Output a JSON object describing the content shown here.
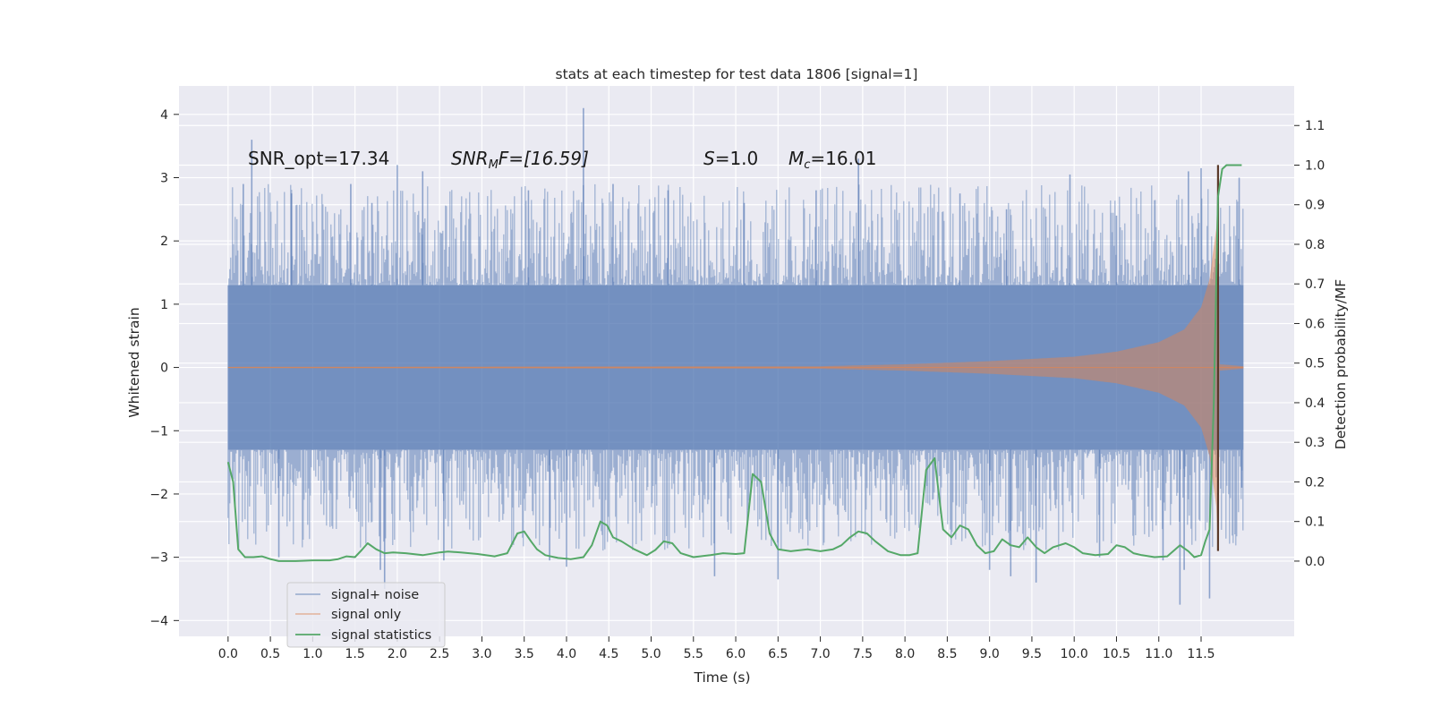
{
  "chart_data": {
    "type": "line",
    "title": "stats at each timestep for test data 1806 [signal=1]",
    "xlabel": "Time (s)",
    "ylabel_left": "Whitened strain",
    "ylabel_right": "Detection probability/MF",
    "xlim": [
      -0.58,
      12.6
    ],
    "ylim_left": [
      -4.25,
      4.45
    ],
    "ylim_right": [
      -0.19,
      1.2
    ],
    "x_ticks": [
      "0.0",
      "0.5",
      "1.0",
      "1.5",
      "2.0",
      "2.5",
      "3.0",
      "3.5",
      "4.0",
      "4.5",
      "5.0",
      "5.5",
      "6.0",
      "6.5",
      "7.0",
      "7.5",
      "8.0",
      "8.5",
      "9.0",
      "9.5",
      "10.0",
      "10.5",
      "11.0",
      "11.5"
    ],
    "y_ticks_left": [
      "4",
      "3",
      "2",
      "1",
      "0",
      "−1",
      "−2",
      "−3",
      "−4"
    ],
    "y_ticks_right": [
      "1.1",
      "1.0",
      "0.9",
      "0.8",
      "0.7",
      "0.6",
      "0.5",
      "0.4",
      "0.3",
      "0.2",
      "0.1",
      "0.0"
    ],
    "grid": true,
    "background": "#eaeaf2",
    "legend": {
      "placement": "lower-left",
      "entries": [
        "signal+ noise",
        "signal only",
        "signal statistics"
      ]
    },
    "annotations": {
      "snr_opt": "SNR_opt=17.34",
      "snr_mf_main": "SNR",
      "snr_mf_sub": "M",
      "snr_mf_rest": "F=[16.59]",
      "s_var": "S",
      "s_val": "=1.0",
      "mc_var": "M",
      "mc_sub": "c",
      "mc_val": "=16.01"
    },
    "series": [
      {
        "name": "signal+ noise",
        "axis": "left",
        "color": "#4c72b0",
        "opacity": 0.5,
        "x_range": [
          0.0,
          12.0
        ],
        "envelope_typical": [
          -1.3,
          1.3
        ],
        "spikes": [
          {
            "x": 0.28,
            "y": 3.6
          },
          {
            "x": 0.18,
            "y": 2.9
          },
          {
            "x": 0.75,
            "y": 2.75
          },
          {
            "x": 1.45,
            "y": 2.9
          },
          {
            "x": 1.7,
            "y": 2.6
          },
          {
            "x": 2.0,
            "y": 3.2
          },
          {
            "x": 2.3,
            "y": 3.1
          },
          {
            "x": 3.55,
            "y": 2.8
          },
          {
            "x": 4.2,
            "y": 4.1
          },
          {
            "x": 4.55,
            "y": 2.9
          },
          {
            "x": 5.2,
            "y": 2.8
          },
          {
            "x": 6.1,
            "y": 2.6
          },
          {
            "x": 6.95,
            "y": 2.8
          },
          {
            "x": 7.45,
            "y": 3.3
          },
          {
            "x": 8.65,
            "y": 2.75
          },
          {
            "x": 9.2,
            "y": 2.5
          },
          {
            "x": 9.95,
            "y": 3.05
          },
          {
            "x": 10.5,
            "y": 2.4
          },
          {
            "x": 11.35,
            "y": 3.1
          },
          {
            "x": 11.5,
            "y": 3.15
          },
          {
            "x": 11.95,
            "y": 3.0
          },
          {
            "x": 1.85,
            "y": -3.5
          },
          {
            "x": 1.8,
            "y": -3.2
          },
          {
            "x": 0.6,
            "y": -3.0
          },
          {
            "x": 2.55,
            "y": -3.05
          },
          {
            "x": 3.8,
            "y": -3.05
          },
          {
            "x": 4.0,
            "y": -3.15
          },
          {
            "x": 5.75,
            "y": -3.3
          },
          {
            "x": 6.5,
            "y": -3.35
          },
          {
            "x": 9.0,
            "y": -3.2
          },
          {
            "x": 9.25,
            "y": -3.3
          },
          {
            "x": 9.55,
            "y": -3.4
          },
          {
            "x": 10.3,
            "y": -3.0
          },
          {
            "x": 11.05,
            "y": -3.05
          },
          {
            "x": 11.25,
            "y": -3.75
          },
          {
            "x": 11.3,
            "y": -3.2
          },
          {
            "x": 11.6,
            "y": -3.65
          },
          {
            "x": 11.98,
            "y": -1.9
          }
        ]
      },
      {
        "name": "signal only",
        "axis": "left",
        "color": "#dd8452",
        "opacity": 0.5,
        "x_range": [
          0.0,
          12.0
        ],
        "envelope_amplitude": [
          {
            "x": 0.0,
            "y": 0.01
          },
          {
            "x": 7.0,
            "y": 0.02
          },
          {
            "x": 8.0,
            "y": 0.05
          },
          {
            "x": 9.0,
            "y": 0.1
          },
          {
            "x": 10.0,
            "y": 0.17
          },
          {
            "x": 10.5,
            "y": 0.25
          },
          {
            "x": 11.0,
            "y": 0.4
          },
          {
            "x": 11.3,
            "y": 0.6
          },
          {
            "x": 11.5,
            "y": 0.95
          },
          {
            "x": 11.6,
            "y": 1.4
          },
          {
            "x": 11.68,
            "y": 2.2
          },
          {
            "x": 11.7,
            "y": 2.9
          },
          {
            "x": 11.72,
            "y": 0.05
          },
          {
            "x": 12.0,
            "y": 0.02
          }
        ]
      },
      {
        "name": "signal statistics",
        "axis": "right",
        "color": "#55a868",
        "x": [
          0.0,
          0.06,
          0.12,
          0.2,
          0.3,
          0.4,
          0.5,
          0.6,
          0.8,
          1.0,
          1.2,
          1.3,
          1.4,
          1.5,
          1.58,
          1.65,
          1.75,
          1.85,
          1.95,
          2.1,
          2.3,
          2.5,
          2.6,
          2.75,
          2.95,
          3.15,
          3.3,
          3.42,
          3.5,
          3.58,
          3.65,
          3.75,
          3.9,
          4.05,
          4.2,
          4.3,
          4.4,
          4.48,
          4.55,
          4.65,
          4.8,
          4.95,
          5.05,
          5.15,
          5.25,
          5.35,
          5.5,
          5.7,
          5.85,
          6.0,
          6.1,
          6.2,
          6.3,
          6.4,
          6.5,
          6.65,
          6.85,
          7.0,
          7.15,
          7.25,
          7.35,
          7.45,
          7.55,
          7.65,
          7.8,
          7.95,
          8.05,
          8.15,
          8.25,
          8.35,
          8.45,
          8.55,
          8.65,
          8.75,
          8.85,
          8.95,
          9.05,
          9.15,
          9.25,
          9.35,
          9.45,
          9.55,
          9.65,
          9.75,
          9.9,
          10.0,
          10.1,
          10.25,
          10.4,
          10.5,
          10.6,
          10.7,
          10.8,
          10.95,
          11.1,
          11.25,
          11.35,
          11.42,
          11.5,
          11.55,
          11.6,
          11.65,
          11.7,
          11.75,
          11.8,
          11.85,
          11.92,
          11.98
        ],
        "values": [
          0.25,
          0.2,
          0.03,
          0.01,
          0.01,
          0.012,
          0.005,
          0.0,
          0.0,
          0.002,
          0.002,
          0.005,
          0.012,
          0.01,
          0.028,
          0.045,
          0.03,
          0.02,
          0.022,
          0.02,
          0.015,
          0.022,
          0.024,
          0.022,
          0.018,
          0.012,
          0.02,
          0.07,
          0.075,
          0.05,
          0.03,
          0.015,
          0.008,
          0.005,
          0.01,
          0.04,
          0.1,
          0.09,
          0.06,
          0.05,
          0.03,
          0.015,
          0.028,
          0.05,
          0.045,
          0.02,
          0.01,
          0.015,
          0.02,
          0.018,
          0.02,
          0.22,
          0.2,
          0.07,
          0.03,
          0.025,
          0.03,
          0.025,
          0.03,
          0.04,
          0.06,
          0.075,
          0.07,
          0.05,
          0.025,
          0.015,
          0.015,
          0.02,
          0.23,
          0.26,
          0.08,
          0.06,
          0.09,
          0.08,
          0.04,
          0.02,
          0.025,
          0.055,
          0.04,
          0.035,
          0.06,
          0.035,
          0.02,
          0.035,
          0.045,
          0.035,
          0.02,
          0.015,
          0.018,
          0.04,
          0.035,
          0.02,
          0.015,
          0.01,
          0.012,
          0.04,
          0.025,
          0.01,
          0.015,
          0.05,
          0.08,
          0.4,
          0.92,
          0.99,
          1.0,
          1.0,
          1.0,
          1.0
        ]
      }
    ],
    "marker_line": {
      "x": 11.7,
      "y_top": 3.2,
      "y_bottom": -2.9,
      "color": "#5a3a2a"
    }
  }
}
